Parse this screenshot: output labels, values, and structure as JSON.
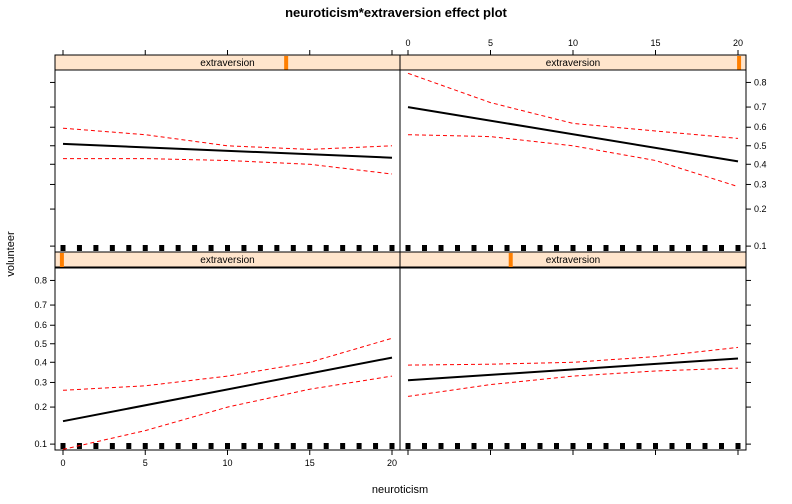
{
  "colors": {
    "strip_fill": "#ffe5cc",
    "strip_marker": "#ff7f00",
    "fit_line": "#000000",
    "ci_line": "#ff0000",
    "rug": "#000000",
    "frame": "#000000"
  },
  "chart_data": {
    "type": "line",
    "title": "neuroticism*extraversion effect plot",
    "xlabel": "neuroticism",
    "ylabel": "volunteer",
    "xlim": [
      0,
      20
    ],
    "ylim": [
      0.1,
      0.8
    ],
    "y_scale": "logit",
    "x_ticks": [
      "0",
      "5",
      "10",
      "15",
      "20"
    ],
    "y_ticks": [
      "0.1",
      "0.2",
      "0.3",
      "0.4",
      "0.5",
      "0.6",
      "0.7",
      "0.8"
    ],
    "rug_positions": [
      0,
      1,
      2,
      3,
      4,
      5,
      6,
      7,
      8,
      9,
      10,
      11,
      12,
      13,
      14,
      15,
      16,
      17,
      18,
      19,
      20
    ],
    "panels": [
      {
        "strip_label": "extraversion",
        "extraversion_level": 0.02,
        "row": "bottom",
        "col": "left",
        "fit": {
          "x": [
            0,
            20
          ],
          "y": [
            0.155,
            0.425
          ]
        },
        "ci_lower": {
          "x": [
            0,
            5,
            10,
            15,
            20
          ],
          "y": [
            0.09,
            0.13,
            0.2,
            0.27,
            0.33
          ]
        },
        "ci_upper": {
          "x": [
            0,
            5,
            10,
            15,
            20
          ],
          "y": [
            0.265,
            0.285,
            0.33,
            0.4,
            0.53
          ]
        }
      },
      {
        "strip_label": "extraversion",
        "extraversion_level": 0.32,
        "row": "bottom",
        "col": "right",
        "fit": {
          "x": [
            0,
            20
          ],
          "y": [
            0.31,
            0.42
          ]
        },
        "ci_lower": {
          "x": [
            0,
            5,
            10,
            15,
            20
          ],
          "y": [
            0.24,
            0.29,
            0.33,
            0.355,
            0.37
          ]
        },
        "ci_upper": {
          "x": [
            0,
            5,
            10,
            15,
            20
          ],
          "y": [
            0.385,
            0.39,
            0.4,
            0.43,
            0.48
          ]
        }
      },
      {
        "strip_label": "extraversion",
        "extraversion_level": 0.67,
        "row": "top",
        "col": "left",
        "fit": {
          "x": [
            0,
            20
          ],
          "y": [
            0.51,
            0.435
          ]
        },
        "ci_lower": {
          "x": [
            0,
            5,
            10,
            15,
            20
          ],
          "y": [
            0.43,
            0.43,
            0.42,
            0.4,
            0.35
          ]
        },
        "ci_upper": {
          "x": [
            0,
            5,
            10,
            15,
            20
          ],
          "y": [
            0.595,
            0.56,
            0.5,
            0.48,
            0.5
          ]
        }
      },
      {
        "strip_label": "extraversion",
        "extraversion_level": 0.98,
        "row": "top",
        "col": "right",
        "fit": {
          "x": [
            0,
            20
          ],
          "y": [
            0.7,
            0.415
          ]
        },
        "ci_lower": {
          "x": [
            0,
            5,
            10,
            15,
            20
          ],
          "y": [
            0.56,
            0.55,
            0.5,
            0.42,
            0.29
          ]
        },
        "ci_upper": {
          "x": [
            0,
            5,
            10,
            15,
            20
          ],
          "y": [
            0.83,
            0.72,
            0.62,
            0.58,
            0.54
          ]
        }
      }
    ]
  }
}
